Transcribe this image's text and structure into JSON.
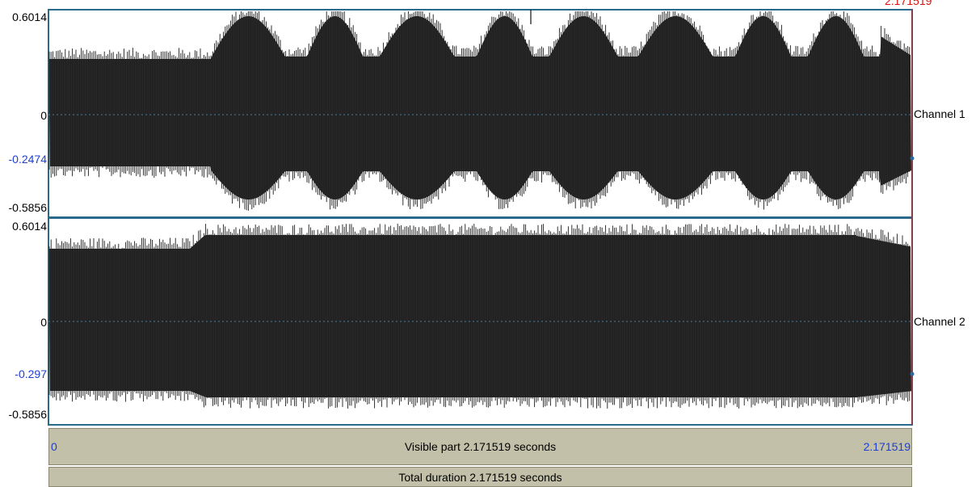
{
  "window": {
    "top_cursor_value": "2.171519"
  },
  "channels": [
    {
      "name": "Channel 1",
      "y_max": "0.6014",
      "y_zero": "0",
      "y_cursor": "-0.2474",
      "y_min": "-0.5856"
    },
    {
      "name": "Channel 2",
      "y_max": "0.6014",
      "y_zero": "0",
      "y_cursor": "-0.297",
      "y_min": "-0.5856"
    }
  ],
  "time_bar": {
    "start": "0",
    "visible_label": "Visible part 2.171519 seconds",
    "end": "2.171519"
  },
  "total_bar": {
    "label": "Total duration 2.171519 seconds"
  },
  "colors": {
    "waveform": "#1a1a1a",
    "panel_border": "#2a6a8a",
    "value_label": "#1e3fd0",
    "cursor": "#e01010",
    "bar_bg": "#c2c0a8"
  }
}
